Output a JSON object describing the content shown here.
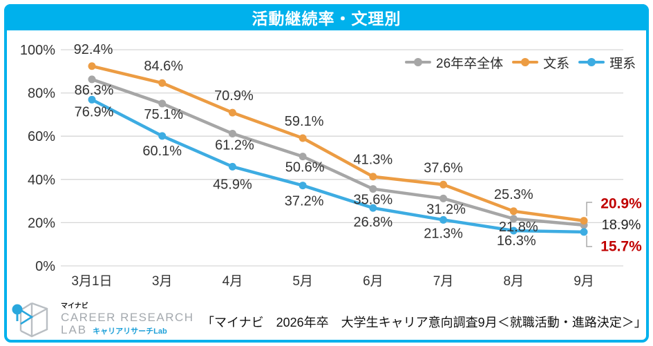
{
  "header": {
    "title": "活動継続率・文理別"
  },
  "colors": {
    "accent": "#00B1EC",
    "overall": "#A6A6A6",
    "humanities": "#EC9C43",
    "sciences": "#3DACE2",
    "highlight_red": "#C00000",
    "label_text": "#333333",
    "grid": "#D6D6D6"
  },
  "chart_data": {
    "type": "line",
    "title": "活動継続率・文理別",
    "categories": [
      "3月1日",
      "3月",
      "4月",
      "5月",
      "6月",
      "7月",
      "8月",
      "9月"
    ],
    "series": [
      {
        "name": "26年卒全体",
        "color": "#A6A6A6",
        "values": [
          86.3,
          75.1,
          61.2,
          50.6,
          35.6,
          31.2,
          21.8,
          18.9
        ],
        "end_label_color": "#222222",
        "end_label_bold": false
      },
      {
        "name": "文系",
        "color": "#EC9C43",
        "values": [
          92.4,
          84.6,
          70.9,
          59.1,
          41.3,
          37.6,
          25.3,
          20.9
        ],
        "end_label_color": "#C00000",
        "end_label_bold": true
      },
      {
        "name": "理系",
        "color": "#3DACE2",
        "values": [
          76.9,
          60.1,
          45.9,
          37.2,
          26.8,
          21.3,
          16.3,
          15.7
        ],
        "end_label_color": "#C00000",
        "end_label_bold": true
      }
    ],
    "ylim": [
      0,
      100
    ],
    "yticks": [
      "0%",
      "20%",
      "40%",
      "60%",
      "80%",
      "100%"
    ],
    "value_suffix": "%",
    "grid": true,
    "legend_position": "top-right"
  },
  "footer": {
    "source": "「マイナビ　2026年卒　大学生キャリア意向調査9月＜就職活動・進路決定＞」",
    "logo": {
      "brand_small": "マイナビ",
      "line1": "CAREER RESEARCH",
      "line2": "LAB",
      "line2_sub": "キャリアリサーチLab"
    }
  }
}
